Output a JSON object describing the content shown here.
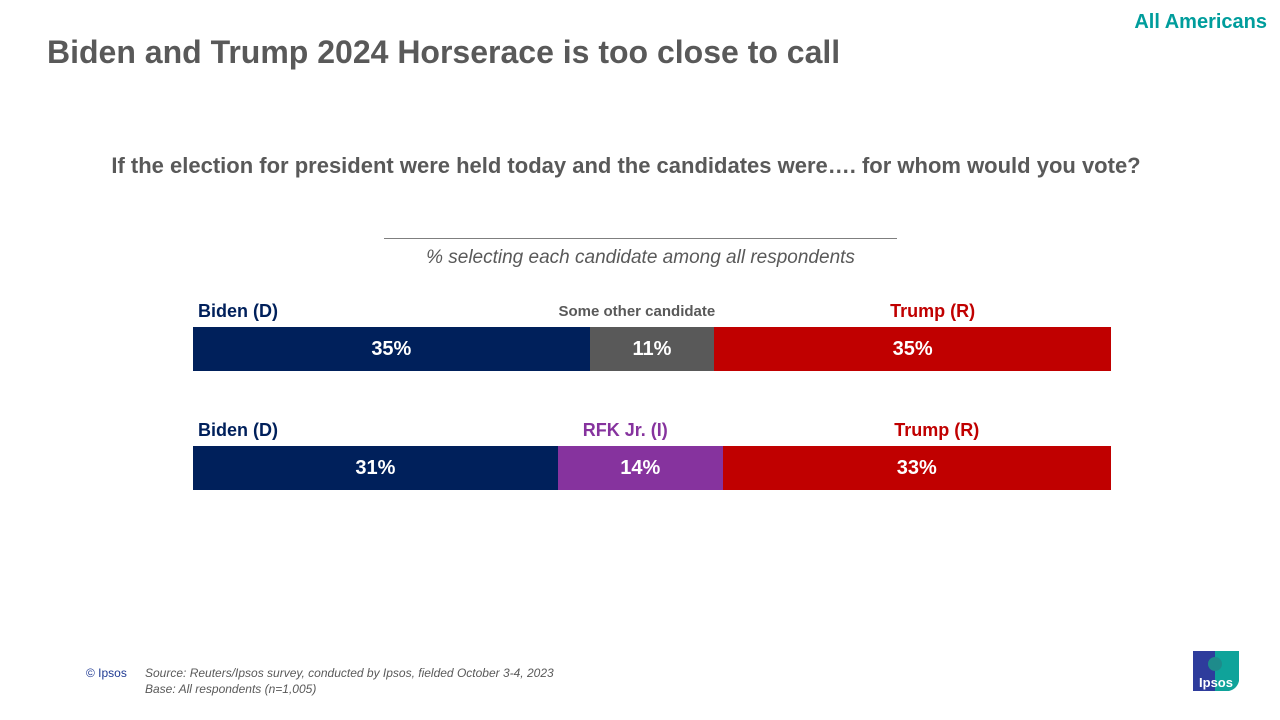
{
  "header": {
    "audience": "All Americans",
    "title": "Biden and Trump 2024 Horserace is too close to call"
  },
  "question": "If the election for president were held today and the candidates were…. for whom would you vote?",
  "subtitle": "% selecting each candidate among all respondents",
  "chart_data": {
    "type": "bar",
    "orientation": "horizontal-stacked",
    "rows": [
      {
        "segments": [
          {
            "name": "Biden (D)",
            "value": 35,
            "label": "35%",
            "color": "#00205B"
          },
          {
            "name": "Some other candidate",
            "value": 11,
            "label": "11%",
            "color": "#595959"
          },
          {
            "name": "Trump (R)",
            "value": 35,
            "label": "35%",
            "color": "#C00000"
          }
        ]
      },
      {
        "segments": [
          {
            "name": "Biden (D)",
            "value": 31,
            "label": "31%",
            "color": "#00205B"
          },
          {
            "name": "RFK Jr. (I)",
            "value": 14,
            "label": "14%",
            "color": "#86339E"
          },
          {
            "name": "Trump (R)",
            "value": 33,
            "label": "33%",
            "color": "#C00000"
          }
        ]
      }
    ]
  },
  "footer": {
    "copyright": "© Ipsos",
    "source": "Source: Reuters/Ipsos survey, conducted by Ipsos, fielded October 3-4, 2023",
    "base": "Base: All respondents (n=1,005)",
    "logo_text": "Ipsos"
  }
}
